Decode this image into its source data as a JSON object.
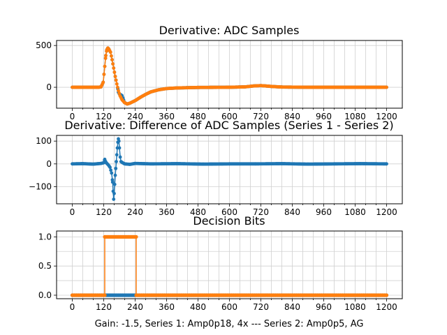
{
  "colors": {
    "series1": "#1f77b4",
    "series2": "#ff7f0e",
    "grid": "#d0d0d0",
    "axis": "#000000"
  },
  "figure_caption": "Gain: -1.5, Series 1: Amp0p18, 4x --- Series 2: Amp0p5, AG",
  "chart_data": [
    {
      "type": "scatter",
      "title": "Derivative: ADC Samples",
      "xlim": [
        -60,
        1260
      ],
      "ylim": [
        -250,
        560
      ],
      "xticks": [
        0,
        120,
        240,
        360,
        480,
        600,
        720,
        840,
        960,
        1080,
        1200
      ],
      "xtick_labels": [
        "0",
        "120",
        "240",
        "360",
        "480",
        "600",
        "720",
        "840",
        "960",
        "1080",
        "1200"
      ],
      "yticks": [
        0,
        500
      ],
      "ytick_labels": [
        "0",
        "500"
      ],
      "grid": true,
      "series": [
        {
          "name": "Series 1",
          "color": "#1f77b4",
          "points": [
            [
              0,
              0
            ],
            [
              60,
              0
            ],
            [
              100,
              0
            ],
            [
              110,
              5
            ],
            [
              118,
              60
            ],
            [
              124,
              250
            ],
            [
              128,
              380
            ],
            [
              132,
              450
            ],
            [
              136,
              470
            ],
            [
              140,
              455
            ],
            [
              146,
              420
            ],
            [
              152,
              330
            ],
            [
              158,
              230
            ],
            [
              164,
              130
            ],
            [
              170,
              40
            ],
            [
              174,
              -20
            ],
            [
              176,
              -60
            ],
            [
              180,
              -80
            ],
            [
              190,
              -100
            ],
            [
              200,
              -185
            ],
            [
              210,
              -200
            ],
            [
              220,
              -190
            ],
            [
              240,
              -160
            ],
            [
              260,
              -120
            ],
            [
              280,
              -85
            ],
            [
              300,
              -55
            ],
            [
              330,
              -30
            ],
            [
              360,
              -15
            ],
            [
              400,
              -8
            ],
            [
              480,
              -2
            ],
            [
              600,
              0
            ],
            [
              660,
              5
            ],
            [
              690,
              15
            ],
            [
              720,
              20
            ],
            [
              760,
              10
            ],
            [
              800,
              3
            ],
            [
              900,
              0
            ],
            [
              1000,
              0
            ],
            [
              1100,
              0
            ],
            [
              1200,
              0
            ]
          ]
        },
        {
          "name": "Series 2",
          "color": "#ff7f0e",
          "points": [
            [
              0,
              0
            ],
            [
              60,
              0
            ],
            [
              100,
              0
            ],
            [
              110,
              5
            ],
            [
              118,
              60
            ],
            [
              124,
              250
            ],
            [
              128,
              380
            ],
            [
              132,
              450
            ],
            [
              136,
              470
            ],
            [
              140,
              455
            ],
            [
              146,
              420
            ],
            [
              152,
              330
            ],
            [
              158,
              230
            ],
            [
              164,
              130
            ],
            [
              170,
              40
            ],
            [
              176,
              -40
            ],
            [
              182,
              -100
            ],
            [
              190,
              -150
            ],
            [
              200,
              -185
            ],
            [
              210,
              -200
            ],
            [
              220,
              -190
            ],
            [
              240,
              -160
            ],
            [
              260,
              -120
            ],
            [
              280,
              -85
            ],
            [
              300,
              -55
            ],
            [
              330,
              -30
            ],
            [
              360,
              -15
            ],
            [
              400,
              -8
            ],
            [
              480,
              -2
            ],
            [
              600,
              0
            ],
            [
              660,
              5
            ],
            [
              690,
              15
            ],
            [
              720,
              20
            ],
            [
              760,
              10
            ],
            [
              800,
              3
            ],
            [
              900,
              0
            ],
            [
              1000,
              0
            ],
            [
              1100,
              0
            ],
            [
              1200,
              0
            ]
          ]
        }
      ]
    },
    {
      "type": "scatter",
      "title": "Derivative: Difference of ADC Samples (Series 1 - Series 2)",
      "xlim": [
        -60,
        1260
      ],
      "ylim": [
        -175,
        125
      ],
      "xticks": [
        0,
        120,
        240,
        360,
        480,
        600,
        720,
        840,
        960,
        1080,
        1200
      ],
      "xtick_labels": [
        "0",
        "120",
        "240",
        "360",
        "480",
        "600",
        "720",
        "840",
        "960",
        "1080",
        "1200"
      ],
      "yticks": [
        -100,
        0,
        100
      ],
      "ytick_labels": [
        "−100",
        "0",
        "100"
      ],
      "grid": true,
      "series": [
        {
          "name": "Difference",
          "color": "#1f77b4",
          "points": [
            [
              0,
              0
            ],
            [
              40,
              1
            ],
            [
              80,
              -1
            ],
            [
              110,
              2
            ],
            [
              120,
              5
            ],
            [
              124,
              20
            ],
            [
              128,
              8
            ],
            [
              132,
              2
            ],
            [
              138,
              -5
            ],
            [
              144,
              -15
            ],
            [
              150,
              -40
            ],
            [
              154,
              -80
            ],
            [
              156,
              -120
            ],
            [
              158,
              -155
            ],
            [
              160,
              -130
            ],
            [
              162,
              -90
            ],
            [
              164,
              -50
            ],
            [
              166,
              -20
            ],
            [
              168,
              10
            ],
            [
              170,
              40
            ],
            [
              172,
              70
            ],
            [
              174,
              95
            ],
            [
              176,
              110
            ],
            [
              178,
              100
            ],
            [
              180,
              70
            ],
            [
              183,
              30
            ],
            [
              186,
              10
            ],
            [
              192,
              5
            ],
            [
              200,
              0
            ],
            [
              220,
              -2
            ],
            [
              240,
              2
            ],
            [
              300,
              0
            ],
            [
              400,
              1
            ],
            [
              500,
              -1
            ],
            [
              600,
              0
            ],
            [
              700,
              0
            ],
            [
              800,
              1
            ],
            [
              900,
              -1
            ],
            [
              1000,
              0
            ],
            [
              1100,
              1
            ],
            [
              1200,
              0
            ]
          ]
        }
      ]
    },
    {
      "type": "step",
      "title": "Decision Bits",
      "xlim": [
        -60,
        1260
      ],
      "ylim": [
        -0.06,
        1.1
      ],
      "xticks": [
        0,
        120,
        240,
        360,
        480,
        600,
        720,
        840,
        960,
        1080,
        1200
      ],
      "xtick_labels": [
        "0",
        "120",
        "240",
        "360",
        "480",
        "600",
        "720",
        "840",
        "960",
        "1080",
        "1200"
      ],
      "yticks": [
        0.0,
        0.5,
        1.0
      ],
      "ytick_labels": [
        "0.0",
        "0.5",
        "1.0"
      ],
      "grid": true,
      "xlabel": "Gain: -1.5, Series 1: Amp0p18, 4x --- Series 2: Amp0p5, AG",
      "series": [
        {
          "name": "Series 1",
          "color": "#1f77b4",
          "points": [
            [
              0,
              0
            ],
            [
              1200,
              0
            ]
          ]
        },
        {
          "name": "Series 2",
          "color": "#ff7f0e",
          "points": [
            [
              0,
              0
            ],
            [
              124,
              0
            ],
            [
              124,
              1
            ],
            [
              244,
              1
            ],
            [
              244,
              0
            ],
            [
              1200,
              0
            ]
          ]
        }
      ]
    }
  ]
}
